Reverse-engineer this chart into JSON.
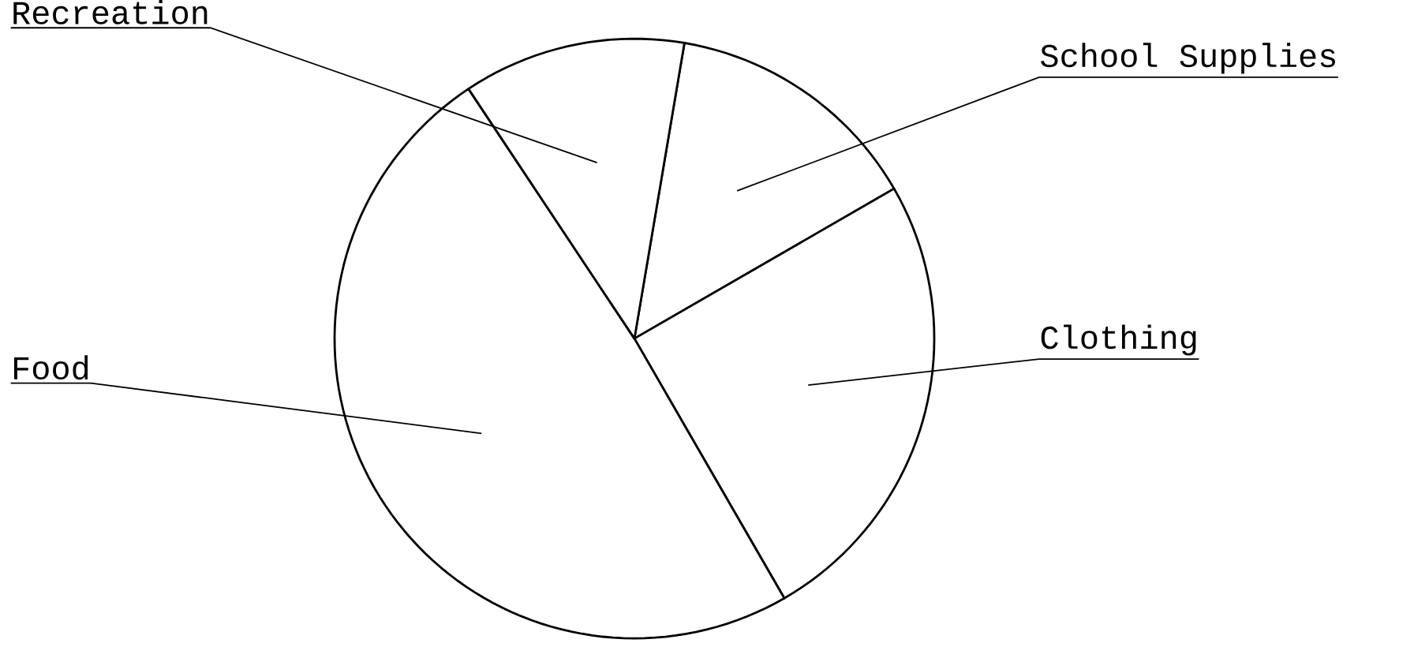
{
  "chart_data": {
    "type": "pie",
    "categories": [
      "School Supplies",
      "Clothing",
      "Food",
      "Recreation"
    ],
    "values": [
      14,
      25,
      49,
      12
    ],
    "colors": [
      "#ffffff",
      "#ffffff",
      "#ffffff",
      "#ffffff"
    ]
  }
}
